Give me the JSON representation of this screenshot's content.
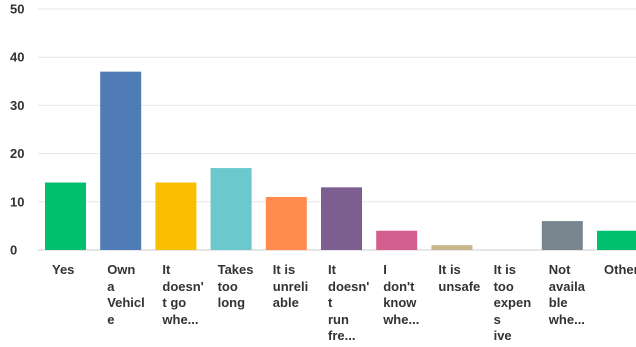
{
  "chart_data": {
    "type": "bar",
    "categories": [
      "Yes",
      "Own a Vehicle",
      "It doesn't go where...",
      "Takes too long",
      "It is unreliable",
      "It doesn't run fre...",
      "I don't know whe...",
      "It is unsafe",
      "It is too expensive",
      "Not available whe...",
      "Other"
    ],
    "category_lines": [
      [
        "Yes"
      ],
      [
        "Own",
        "a",
        "Vehicl",
        "e"
      ],
      [
        "It",
        "doesn'",
        "t go",
        "whe..."
      ],
      [
        "Takes",
        "too",
        "long"
      ],
      [
        "It is",
        "unreli",
        "able"
      ],
      [
        "It",
        "doesn'",
        "t",
        "run",
        "fre..."
      ],
      [
        "I",
        "don't",
        "know",
        "whe..."
      ],
      [
        "It is",
        "unsafe"
      ],
      [
        "It is",
        "too",
        "expens",
        "ive"
      ],
      [
        "Not",
        "availa",
        "ble",
        "whe..."
      ],
      [
        "Other"
      ]
    ],
    "values": [
      14,
      37,
      14,
      17,
      11,
      13,
      4,
      1,
      0,
      6,
      4
    ],
    "colors": [
      "#00bf6f",
      "#507cb6",
      "#f9be00",
      "#6bc8cd",
      "#ff8b4f",
      "#7d5e90",
      "#d25f90",
      "#c8b68c",
      "#d8d8d8",
      "#7a868f",
      "#00bf6f"
    ],
    "yticks": [
      "0",
      "10",
      "20",
      "30",
      "40",
      "50"
    ],
    "ylim": [
      0,
      50
    ],
    "grid": true,
    "title": "",
    "xlabel": "",
    "ylabel": ""
  }
}
